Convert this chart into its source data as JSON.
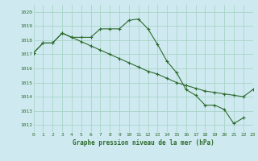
{
  "title": "Graphe pression niveau de la mer (hPa)",
  "background_color": "#ceeaf0",
  "grid_color": "#aad4c8",
  "line_color": "#2d6a2d",
  "x_min": 0,
  "x_max": 23,
  "y_min": 1011.5,
  "y_max": 1020.5,
  "y_ticks": [
    1012,
    1013,
    1014,
    1015,
    1016,
    1017,
    1018,
    1019,
    1020
  ],
  "series1_x": [
    0,
    1,
    2,
    3,
    4,
    5,
    6,
    7,
    8,
    9,
    10,
    11,
    12,
    13,
    14,
    15,
    16,
    17,
    18,
    19,
    20,
    21,
    22
  ],
  "series1_y": [
    1017.1,
    1017.8,
    1017.8,
    1018.5,
    1018.2,
    1018.2,
    1018.2,
    1018.8,
    1018.8,
    1018.8,
    1019.4,
    1019.5,
    1018.8,
    1017.7,
    1016.5,
    1015.7,
    1014.5,
    1014.1,
    1013.4,
    1013.4,
    1013.1,
    1012.1,
    1012.5
  ],
  "series2_x": [
    0,
    1,
    2,
    3,
    4,
    5,
    6,
    7,
    8,
    9,
    10,
    11,
    12,
    13,
    14,
    15,
    16,
    17,
    18,
    19,
    20,
    21,
    22,
    23
  ],
  "series2_y": [
    1017.1,
    1017.8,
    1017.8,
    1018.5,
    1018.2,
    1017.9,
    1017.6,
    1017.3,
    1017.0,
    1016.7,
    1016.4,
    1016.1,
    1015.8,
    1015.6,
    1015.3,
    1015.0,
    1014.8,
    1014.6,
    1014.4,
    1014.3,
    1014.2,
    1014.1,
    1014.0,
    1014.5
  ]
}
